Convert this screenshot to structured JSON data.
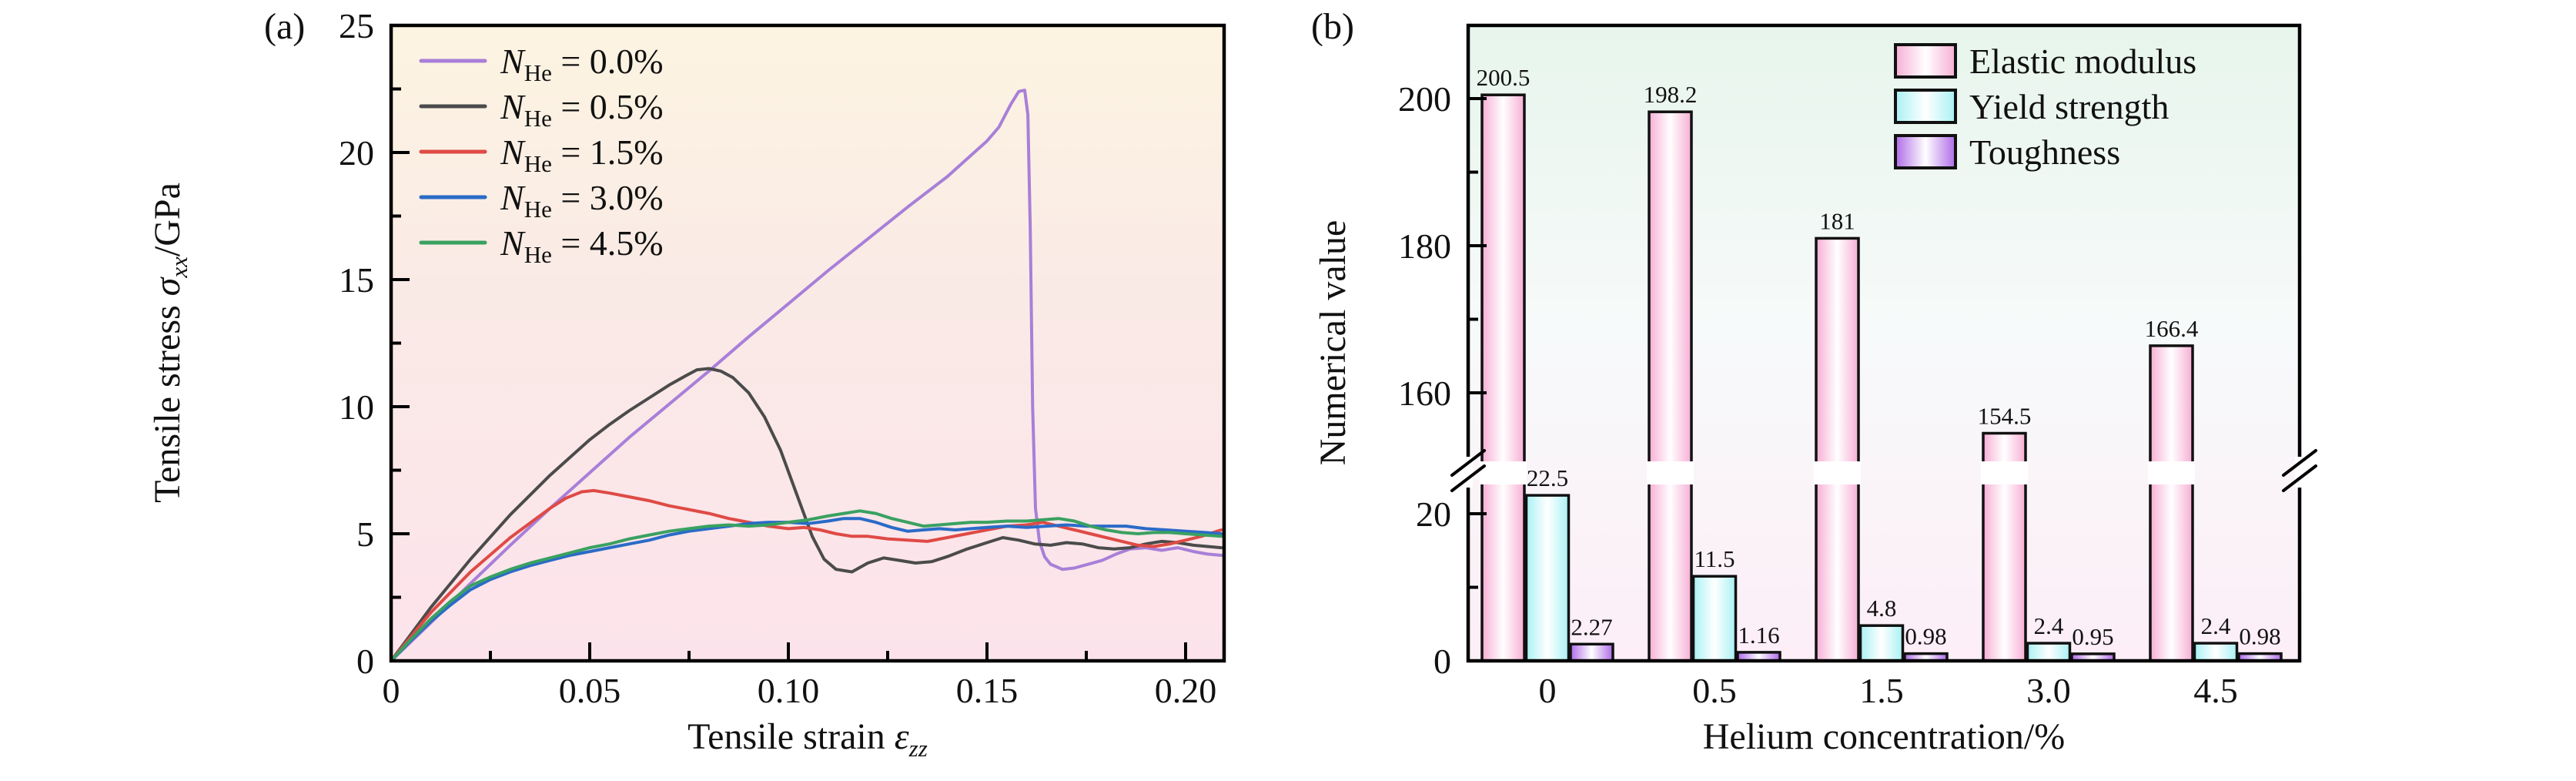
{
  "panel_a": {
    "tag": "(a)",
    "xlabel": {
      "prefix": "Tensile strain ",
      "sym": "ε",
      "sub": "zz"
    },
    "ylabel": {
      "prefix": "Tensile stress ",
      "sym": "σ",
      "sub": "xx",
      "suffix": "/GPa"
    }
  },
  "panel_b": {
    "tag": "(b)",
    "xlabel": "Helium concentration/%",
    "ylabel": "Numerical value"
  },
  "chart_data": [
    {
      "id": "panel_a",
      "type": "line",
      "title": "(a)",
      "xlabel": "Tensile strain εzz",
      "ylabel": "Tensile stress σxx/GPa",
      "xlim": [
        0,
        0.2096
      ],
      "ylim": [
        0,
        25
      ],
      "grid": false,
      "legend_position": "upper-left-inside",
      "x_major_ticks": [
        0,
        0.05,
        0.1,
        0.15,
        0.2
      ],
      "x_tick_labels": [
        "0",
        "0.05",
        "0.10",
        "0.15",
        "0.20"
      ],
      "x_minor_ticks": [
        0.025,
        0.075,
        0.125,
        0.175
      ],
      "y_major_ticks": [
        0,
        5,
        10,
        15,
        20,
        25
      ],
      "y_tick_labels": [
        "0",
        "5",
        "10",
        "15",
        "20",
        "25"
      ],
      "y_minor_ticks": [
        2.5,
        7.5,
        12.5,
        17.5,
        22.5
      ],
      "background_gradient": [
        "#fcf4e1",
        "#faeae6",
        "#fce3eb"
      ],
      "series": [
        {
          "name": "NHe = 0.0%",
          "legend": {
            "sym": "N",
            "sub": "He",
            "rest": " = 0.0%"
          },
          "color": "#a87fd8",
          "points": [
            [
              0,
              0
            ],
            [
              0.01,
              1.5
            ],
            [
              0.02,
              3.05
            ],
            [
              0.03,
              4.55
            ],
            [
              0.04,
              6.0
            ],
            [
              0.05,
              7.4
            ],
            [
              0.06,
              8.8
            ],
            [
              0.07,
              10.1
            ],
            [
              0.08,
              11.4
            ],
            [
              0.09,
              12.75
            ],
            [
              0.1,
              14.05
            ],
            [
              0.11,
              15.35
            ],
            [
              0.12,
              16.6
            ],
            [
              0.13,
              17.85
            ],
            [
              0.14,
              19.05
            ],
            [
              0.15,
              20.45
            ],
            [
              0.153,
              21.0
            ],
            [
              0.156,
              21.9
            ],
            [
              0.158,
              22.4
            ],
            [
              0.1595,
              22.45
            ],
            [
              0.1603,
              21.5
            ],
            [
              0.1609,
              17.0
            ],
            [
              0.1615,
              10.0
            ],
            [
              0.1622,
              6.0
            ],
            [
              0.1632,
              4.7
            ],
            [
              0.1645,
              4.1
            ],
            [
              0.166,
              3.8
            ],
            [
              0.169,
              3.6
            ],
            [
              0.172,
              3.65
            ],
            [
              0.1755,
              3.8
            ],
            [
              0.179,
              3.95
            ],
            [
              0.1825,
              4.2
            ],
            [
              0.186,
              4.4
            ],
            [
              0.19,
              4.45
            ],
            [
              0.194,
              4.35
            ],
            [
              0.198,
              4.45
            ],
            [
              0.202,
              4.3
            ],
            [
              0.2055,
              4.2
            ],
            [
              0.209,
              4.15
            ]
          ]
        },
        {
          "name": "NHe = 0.5%",
          "legend": {
            "sym": "N",
            "sub": "He",
            "rest": " = 0.5%"
          },
          "color": "#4b4b4b",
          "points": [
            [
              0,
              0
            ],
            [
              0.005,
              1.05
            ],
            [
              0.01,
              2.1
            ],
            [
              0.02,
              4.0
            ],
            [
              0.03,
              5.75
            ],
            [
              0.04,
              7.3
            ],
            [
              0.05,
              8.7
            ],
            [
              0.055,
              9.3
            ],
            [
              0.06,
              9.85
            ],
            [
              0.065,
              10.35
            ],
            [
              0.07,
              10.85
            ],
            [
              0.074,
              11.2
            ],
            [
              0.077,
              11.45
            ],
            [
              0.08,
              11.5
            ],
            [
              0.083,
              11.4
            ],
            [
              0.086,
              11.15
            ],
            [
              0.09,
              10.55
            ],
            [
              0.094,
              9.6
            ],
            [
              0.098,
              8.3
            ],
            [
              0.102,
              6.6
            ],
            [
              0.106,
              4.9
            ],
            [
              0.109,
              4.0
            ],
            [
              0.112,
              3.6
            ],
            [
              0.116,
              3.5
            ],
            [
              0.12,
              3.85
            ],
            [
              0.124,
              4.05
            ],
            [
              0.128,
              3.95
            ],
            [
              0.132,
              3.85
            ],
            [
              0.136,
              3.9
            ],
            [
              0.14,
              4.1
            ],
            [
              0.145,
              4.4
            ],
            [
              0.15,
              4.65
            ],
            [
              0.154,
              4.85
            ],
            [
              0.158,
              4.75
            ],
            [
              0.162,
              4.6
            ],
            [
              0.166,
              4.55
            ],
            [
              0.17,
              4.65
            ],
            [
              0.174,
              4.6
            ],
            [
              0.178,
              4.45
            ],
            [
              0.182,
              4.4
            ],
            [
              0.186,
              4.45
            ],
            [
              0.19,
              4.6
            ],
            [
              0.194,
              4.7
            ],
            [
              0.198,
              4.65
            ],
            [
              0.202,
              4.55
            ],
            [
              0.2055,
              4.5
            ],
            [
              0.209,
              4.45
            ]
          ]
        },
        {
          "name": "NHe = 1.5%",
          "legend": {
            "sym": "N",
            "sub": "He",
            "rest": " = 1.5%"
          },
          "color": "#df4a45",
          "points": [
            [
              0,
              0
            ],
            [
              0.005,
              0.95
            ],
            [
              0.01,
              1.9
            ],
            [
              0.02,
              3.5
            ],
            [
              0.03,
              4.85
            ],
            [
              0.04,
              6.0
            ],
            [
              0.044,
              6.4
            ],
            [
              0.048,
              6.65
            ],
            [
              0.051,
              6.7
            ],
            [
              0.055,
              6.6
            ],
            [
              0.06,
              6.45
            ],
            [
              0.065,
              6.3
            ],
            [
              0.07,
              6.1
            ],
            [
              0.075,
              5.95
            ],
            [
              0.08,
              5.8
            ],
            [
              0.085,
              5.6
            ],
            [
              0.09,
              5.45
            ],
            [
              0.095,
              5.3
            ],
            [
              0.1,
              5.2
            ],
            [
              0.104,
              5.25
            ],
            [
              0.108,
              5.15
            ],
            [
              0.112,
              5.0
            ],
            [
              0.116,
              4.9
            ],
            [
              0.12,
              4.9
            ],
            [
              0.125,
              4.8
            ],
            [
              0.13,
              4.75
            ],
            [
              0.135,
              4.7
            ],
            [
              0.14,
              4.85
            ],
            [
              0.145,
              5.0
            ],
            [
              0.15,
              5.15
            ],
            [
              0.155,
              5.3
            ],
            [
              0.16,
              5.35
            ],
            [
              0.164,
              5.45
            ],
            [
              0.168,
              5.3
            ],
            [
              0.172,
              5.15
            ],
            [
              0.176,
              5.0
            ],
            [
              0.18,
              4.85
            ],
            [
              0.184,
              4.7
            ],
            [
              0.188,
              4.55
            ],
            [
              0.192,
              4.5
            ],
            [
              0.196,
              4.6
            ],
            [
              0.2,
              4.75
            ],
            [
              0.204,
              4.9
            ],
            [
              0.209,
              5.15
            ]
          ]
        },
        {
          "name": "NHe = 3.0%",
          "legend": {
            "sym": "N",
            "sub": "He",
            "rest": " = 3.0%"
          },
          "color": "#2a6bc8",
          "points": [
            [
              0,
              0
            ],
            [
              0.005,
              0.8
            ],
            [
              0.01,
              1.55
            ],
            [
              0.015,
              2.2
            ],
            [
              0.02,
              2.8
            ],
            [
              0.025,
              3.2
            ],
            [
              0.03,
              3.5
            ],
            [
              0.035,
              3.75
            ],
            [
              0.04,
              3.95
            ],
            [
              0.045,
              4.15
            ],
            [
              0.05,
              4.3
            ],
            [
              0.055,
              4.45
            ],
            [
              0.06,
              4.6
            ],
            [
              0.065,
              4.75
            ],
            [
              0.07,
              4.95
            ],
            [
              0.075,
              5.1
            ],
            [
              0.08,
              5.2
            ],
            [
              0.085,
              5.3
            ],
            [
              0.09,
              5.4
            ],
            [
              0.095,
              5.45
            ],
            [
              0.1,
              5.45
            ],
            [
              0.105,
              5.4
            ],
            [
              0.11,
              5.5
            ],
            [
              0.114,
              5.6
            ],
            [
              0.118,
              5.6
            ],
            [
              0.122,
              5.45
            ],
            [
              0.126,
              5.25
            ],
            [
              0.13,
              5.1
            ],
            [
              0.134,
              5.15
            ],
            [
              0.138,
              5.2
            ],
            [
              0.142,
              5.15
            ],
            [
              0.146,
              5.2
            ],
            [
              0.15,
              5.25
            ],
            [
              0.155,
              5.3
            ],
            [
              0.16,
              5.25
            ],
            [
              0.165,
              5.3
            ],
            [
              0.17,
              5.35
            ],
            [
              0.175,
              5.3
            ],
            [
              0.18,
              5.3
            ],
            [
              0.185,
              5.3
            ],
            [
              0.19,
              5.2
            ],
            [
              0.195,
              5.15
            ],
            [
              0.2,
              5.1
            ],
            [
              0.205,
              5.05
            ],
            [
              0.209,
              5.0
            ]
          ]
        },
        {
          "name": "NHe = 4.5%",
          "legend": {
            "sym": "N",
            "sub": "He",
            "rest": " = 4.5%"
          },
          "color": "#3aa161",
          "points": [
            [
              0,
              0
            ],
            [
              0.005,
              0.85
            ],
            [
              0.01,
              1.65
            ],
            [
              0.015,
              2.35
            ],
            [
              0.02,
              2.95
            ],
            [
              0.025,
              3.3
            ],
            [
              0.03,
              3.6
            ],
            [
              0.035,
              3.85
            ],
            [
              0.04,
              4.05
            ],
            [
              0.045,
              4.25
            ],
            [
              0.05,
              4.45
            ],
            [
              0.055,
              4.6
            ],
            [
              0.06,
              4.8
            ],
            [
              0.065,
              4.95
            ],
            [
              0.07,
              5.1
            ],
            [
              0.075,
              5.2
            ],
            [
              0.08,
              5.3
            ],
            [
              0.085,
              5.35
            ],
            [
              0.09,
              5.3
            ],
            [
              0.095,
              5.35
            ],
            [
              0.1,
              5.45
            ],
            [
              0.105,
              5.55
            ],
            [
              0.11,
              5.7
            ],
            [
              0.114,
              5.8
            ],
            [
              0.118,
              5.9
            ],
            [
              0.122,
              5.8
            ],
            [
              0.126,
              5.6
            ],
            [
              0.13,
              5.45
            ],
            [
              0.134,
              5.3
            ],
            [
              0.138,
              5.35
            ],
            [
              0.142,
              5.4
            ],
            [
              0.146,
              5.45
            ],
            [
              0.15,
              5.45
            ],
            [
              0.155,
              5.5
            ],
            [
              0.16,
              5.5
            ],
            [
              0.164,
              5.55
            ],
            [
              0.168,
              5.6
            ],
            [
              0.172,
              5.5
            ],
            [
              0.176,
              5.3
            ],
            [
              0.18,
              5.15
            ],
            [
              0.184,
              5.05
            ],
            [
              0.188,
              5.0
            ],
            [
              0.192,
              5.05
            ],
            [
              0.196,
              5.05
            ],
            [
              0.2,
              5.0
            ],
            [
              0.2045,
              4.95
            ],
            [
              0.209,
              4.9
            ]
          ]
        }
      ]
    },
    {
      "id": "panel_b",
      "type": "bar",
      "title": "(b)",
      "xlabel": "Helium concentration/%",
      "ylabel": "Numerical value",
      "grid": false,
      "legend_position": "upper-right-inside",
      "categories": [
        "0",
        "0.5",
        "1.5",
        "3.0",
        "4.5"
      ],
      "broken_axis": {
        "lower_range": [
          0,
          30
        ],
        "upper_range": [
          150,
          212
        ]
      },
      "y_ticks_lower": [
        0,
        20
      ],
      "y_tick_labels_lower": [
        "0",
        "20"
      ],
      "y_minor_ticks_lower": [
        10
      ],
      "y_ticks_upper": [
        160,
        180,
        200
      ],
      "y_tick_labels_upper": [
        "160",
        "180",
        "200"
      ],
      "y_minor_ticks_upper": [
        170,
        190
      ],
      "background_gradient": [
        "#e7f5ec",
        "#f7fafa",
        "#fdeef7"
      ],
      "series": [
        {
          "name": "Elastic modulus",
          "values": [
            200.5,
            198.2,
            181,
            154.5,
            166.4
          ],
          "labels": [
            "200.5",
            "198.2",
            "181",
            "154.5",
            "166.4"
          ],
          "edge_color": "#f7aed4"
        },
        {
          "name": "Yield strength",
          "values": [
            22.5,
            11.5,
            4.8,
            2.4,
            2.4
          ],
          "labels": [
            "22.5",
            "11.5",
            "4.8",
            "2.4",
            "2.4"
          ],
          "edge_color": "#a9f1f4"
        },
        {
          "name": "Toughness",
          "values": [
            2.27,
            1.16,
            0.98,
            0.95,
            0.98
          ],
          "labels": [
            "2.27",
            "1.16",
            "0.98",
            "0.95",
            "0.98"
          ],
          "edge_color": "#ae6ae8"
        }
      ]
    }
  ]
}
